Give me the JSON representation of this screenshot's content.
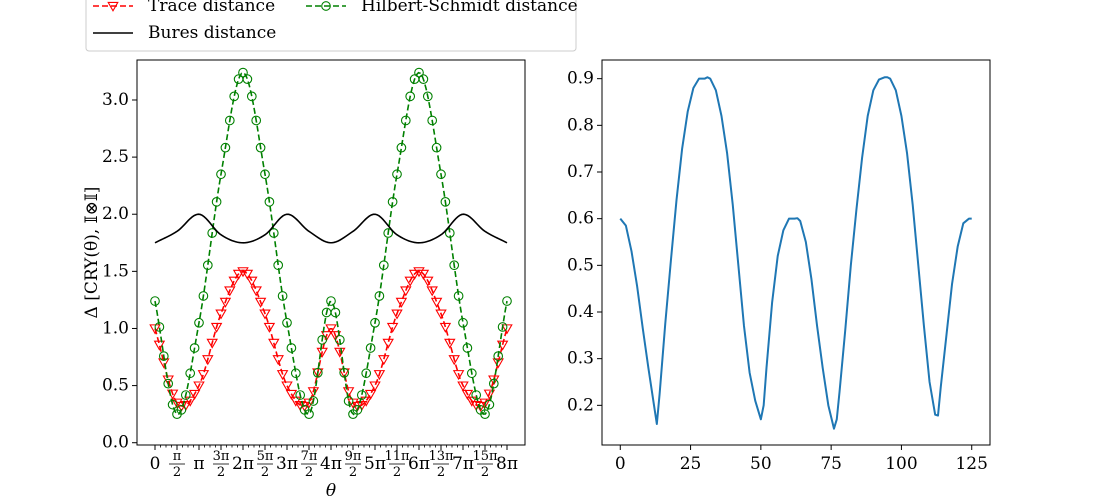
{
  "chart_data": [
    {
      "type": "line",
      "title": "",
      "xlabel": "θ",
      "ylabel": "Δ [CRY(θ), 𝕀⊗𝕀]",
      "xlim": [
        0,
        8
      ],
      "xlim_unit": "π",
      "ylim": [
        -0.02,
        3.35
      ],
      "grid": false,
      "legend": {
        "placement": "top (above plot)",
        "entries": [
          "Trace distance",
          "Hilbert-Schmidt distance",
          "Bures distance"
        ]
      },
      "x_tick_labels": [
        "0",
        "π/2",
        "π",
        "3π/2",
        "2π",
        "5π/2",
        "3π",
        "7π/2",
        "4π",
        "9π/2",
        "5π",
        "11π/2",
        "6π",
        "13π/2",
        "7π",
        "15π/2",
        "8π"
      ],
      "x_tick_values": [
        0,
        0.5,
        1,
        1.5,
        2,
        2.5,
        3,
        3.5,
        4,
        4.5,
        5,
        5.5,
        6,
        6.5,
        7,
        7.5,
        8
      ],
      "y_tick_labels": [
        "0.0",
        "0.5",
        "1.0",
        "1.5",
        "2.0",
        "2.5",
        "3.0"
      ],
      "y_tick_values": [
        0,
        0.5,
        1,
        1.5,
        2,
        2.5,
        3
      ],
      "series": [
        {
          "name": "Trace distance",
          "color": "#ff0000",
          "linestyle": "dashed",
          "marker": "triangle-down-open",
          "x": [
            0,
            0.5,
            1,
            1.5,
            2,
            2.5,
            3,
            3.5,
            4,
            4.5,
            5,
            5.5,
            6,
            6.5,
            7,
            7.5,
            8
          ],
          "y": [
            1.0,
            0.35,
            0.5,
            1.13,
            1.5,
            1.13,
            0.5,
            0.35,
            1.0,
            0.35,
            0.5,
            1.13,
            1.5,
            1.13,
            0.5,
            0.35,
            1.0
          ]
        },
        {
          "name": "Hilbert-Schmidt distance",
          "color": "#008000",
          "linestyle": "dashed",
          "marker": "circle-open",
          "x": [
            0,
            0.5,
            1,
            1.5,
            2,
            2.5,
            3,
            3.5,
            4,
            4.5,
            5,
            5.5,
            6,
            6.5,
            7,
            7.5,
            8
          ],
          "y": [
            1.24,
            0.25,
            1.05,
            2.35,
            3.24,
            2.35,
            1.05,
            0.25,
            1.24,
            0.25,
            1.05,
            2.35,
            3.24,
            2.35,
            1.05,
            0.25,
            1.24
          ]
        },
        {
          "name": "Bures distance",
          "color": "#000000",
          "linestyle": "solid",
          "marker": "none",
          "x": [
            0,
            0.5,
            1,
            1.5,
            2,
            2.5,
            3,
            3.5,
            4,
            4.5,
            5,
            5.5,
            6,
            6.5,
            7,
            7.5,
            8
          ],
          "y": [
            1.75,
            1.85,
            2.0,
            1.82,
            1.75,
            1.82,
            2.0,
            1.85,
            1.75,
            1.85,
            2.0,
            1.82,
            1.75,
            1.82,
            2.0,
            1.85,
            1.75
          ]
        }
      ]
    },
    {
      "type": "line",
      "title": "",
      "xlabel": "",
      "ylabel": "",
      "xlim": [
        -6.5,
        131.5
      ],
      "ylim": [
        0.115,
        0.94
      ],
      "grid": false,
      "x_tick_labels": [
        "0",
        "25",
        "50",
        "75",
        "100",
        "125"
      ],
      "x_tick_values": [
        0,
        25,
        50,
        75,
        100,
        125
      ],
      "y_tick_labels": [
        "0.2",
        "0.3",
        "0.4",
        "0.5",
        "0.6",
        "0.7",
        "0.8",
        "0.9"
      ],
      "y_tick_values": [
        0.2,
        0.3,
        0.4,
        0.5,
        0.6,
        0.7,
        0.8,
        0.9
      ],
      "series": [
        {
          "color": "#1f77b4",
          "x": [
            0,
            2,
            4,
            6,
            8,
            10,
            12,
            13,
            14,
            16,
            18,
            20,
            22,
            24,
            26,
            28,
            30,
            31,
            32,
            34,
            36,
            38,
            40,
            42,
            44,
            46,
            48,
            50,
            51,
            52,
            54,
            56,
            58,
            60,
            62,
            63,
            64,
            66,
            68,
            70,
            72,
            74,
            76,
            77,
            78,
            80,
            82,
            84,
            86,
            88,
            90,
            92,
            94,
            95,
            96,
            98,
            100,
            102,
            104,
            106,
            108,
            110,
            112,
            113,
            114,
            116,
            118,
            120,
            122,
            124,
            125
          ],
          "y": [
            0.6,
            0.585,
            0.53,
            0.455,
            0.365,
            0.28,
            0.2,
            0.16,
            0.225,
            0.375,
            0.51,
            0.64,
            0.75,
            0.83,
            0.88,
            0.9,
            0.9,
            0.903,
            0.9,
            0.875,
            0.82,
            0.74,
            0.63,
            0.5,
            0.37,
            0.27,
            0.21,
            0.17,
            0.2,
            0.28,
            0.42,
            0.52,
            0.575,
            0.6,
            0.6,
            0.601,
            0.595,
            0.55,
            0.47,
            0.37,
            0.28,
            0.2,
            0.15,
            0.17,
            0.23,
            0.36,
            0.5,
            0.62,
            0.73,
            0.82,
            0.875,
            0.898,
            0.903,
            0.903,
            0.9,
            0.875,
            0.82,
            0.74,
            0.63,
            0.5,
            0.37,
            0.25,
            0.18,
            0.178,
            0.24,
            0.35,
            0.46,
            0.54,
            0.59,
            0.6,
            0.6
          ]
        }
      ]
    }
  ]
}
